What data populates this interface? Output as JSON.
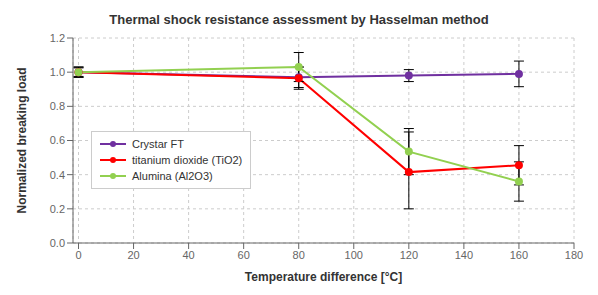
{
  "chart_data": {
    "type": "line",
    "title": "Thermal shock resistance assessment by Hasselman method",
    "xlabel": "Temperature difference [°C]",
    "ylabel": "Normalized breaking load",
    "xlim": [
      -2,
      180
    ],
    "ylim": [
      0.0,
      1.2
    ],
    "xticks": [
      0,
      20,
      40,
      60,
      80,
      100,
      120,
      140,
      160,
      180
    ],
    "yticks": [
      {
        "value": 0.0,
        "label": "0.0"
      },
      0.2,
      0.4,
      0.6,
      0.8,
      {
        "value": 1.0,
        "label": "1.0"
      },
      1.2
    ],
    "grid": true,
    "legend": "left",
    "series": [
      {
        "name": "Crystar FT",
        "color": "#7030A0",
        "marker": "circle",
        "x": [
          0,
          80,
          120,
          160
        ],
        "values": [
          1.0,
          0.97,
          0.98,
          0.99
        ],
        "error_low": [
          0.03,
          0.06,
          0.035,
          0.075
        ],
        "error_high": [
          0.03,
          0.06,
          0.035,
          0.075
        ]
      },
      {
        "name": "titanium dioxide (TiO2)",
        "color": "#FF0000",
        "marker": "circle",
        "x": [
          0,
          80,
          120,
          160
        ],
        "values": [
          1.0,
          0.965,
          0.415,
          0.455
        ],
        "error_low": [
          0.03,
          0.065,
          0.215,
          0.115
        ],
        "error_high": [
          0.03,
          0.065,
          0.255,
          0.115
        ]
      },
      {
        "name": "Alumina (Al2O3)",
        "color": "#92D050",
        "marker": "circle",
        "x": [
          0,
          80,
          120,
          160
        ],
        "values": [
          1.0,
          1.03,
          0.535,
          0.36
        ],
        "error_low": [
          0.025,
          0.085,
          0.135,
          0.115
        ],
        "error_high": [
          0.025,
          0.085,
          0.115,
          0.115
        ]
      }
    ]
  }
}
